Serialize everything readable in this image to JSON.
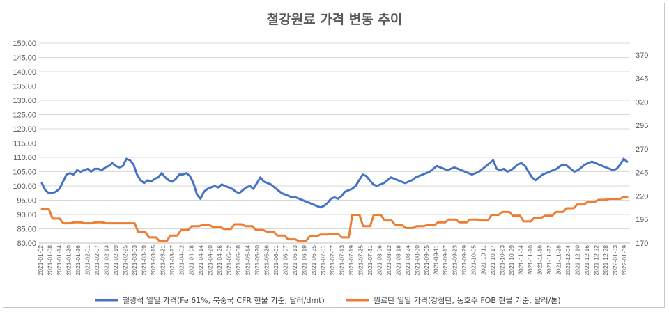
{
  "chart_data": {
    "type": "line",
    "title": "철강원료 가격 변동 추이",
    "y_left": {
      "ticks": [
        "80.00",
        "85.00",
        "90.00",
        "95.00",
        "100.00",
        "105.00",
        "110.00",
        "115.00",
        "120.00",
        "125.00",
        "130.00",
        "135.00",
        "140.00",
        "145.00",
        "150.00"
      ],
      "min": 80,
      "max": 150
    },
    "y_right": {
      "ticks": [
        "170",
        "195",
        "220",
        "245",
        "270",
        "295",
        "320",
        "345",
        "370"
      ],
      "min": 170,
      "max": 382.5
    },
    "x_labels": [
      "2021-01-02",
      "2021-01-08",
      "2021-01-14",
      "2021-01-20",
      "2021-01-26",
      "2021-02-01",
      "2021-02-07",
      "2021-02-13",
      "2021-02-19",
      "2021-02-25",
      "2021-03-03",
      "2021-03-09",
      "2021-03-15",
      "2021-03-21",
      "2021-03-27",
      "2021-04-02",
      "2021-04-08",
      "2021-04-14",
      "2021-04-20",
      "2021-04-26",
      "2021-05-02",
      "2021-05-08",
      "2021-05-14",
      "2021-05-20",
      "2021-05-26",
      "2021-06-01",
      "2021-06-07",
      "2021-06-13",
      "2021-06-19",
      "2021-06-25",
      "2021-07-01",
      "2021-07-07",
      "2021-07-13",
      "2021-07-19",
      "2021-07-25",
      "2021-07-31",
      "2021-08-06",
      "2021-08-12",
      "2021-08-18",
      "2021-08-24",
      "2021-08-30",
      "2021-09-05",
      "2021-09-11",
      "2021-09-17",
      "2021-09-23",
      "2021-09-29",
      "2021-10-05",
      "2021-10-11",
      "2021-10-17",
      "2021-10-23",
      "2021-10-29",
      "2021-11-04",
      "2021-11-10",
      "2021-11-16",
      "2021-11-22",
      "2021-11-28",
      "2021-12-04",
      "2021-12-10",
      "2021-12-16",
      "2021-12-22",
      "2021-12-28",
      "2022-01-03",
      "2022-01-09"
    ],
    "series": [
      {
        "name": "철광석 일일 가격(Fe 61%, 북중국 CFR 현물 기준, 달러/dmt)",
        "axis": "left",
        "color": "#4472c4",
        "values": [
          101.0,
          98.5,
          97.5,
          97.5,
          98.0,
          99.0,
          101.5,
          104.0,
          104.5,
          104.0,
          105.5,
          105.0,
          105.5,
          106.0,
          105.0,
          106.0,
          106.0,
          105.5,
          106.5,
          107.0,
          108.0,
          107.0,
          106.5,
          107.0,
          109.5,
          109.0,
          107.5,
          104.0,
          102.0,
          101.0,
          102.0,
          101.5,
          102.5,
          103.0,
          104.5,
          103.0,
          102.0,
          101.5,
          102.5,
          104.0,
          104.0,
          104.5,
          103.5,
          101.0,
          97.0,
          95.5,
          98.0,
          99.0,
          99.5,
          100.0,
          99.5,
          100.5,
          100.0,
          99.5,
          99.0,
          98.0,
          97.5,
          98.5,
          99.5,
          100.0,
          99.0,
          101.0,
          103.0,
          101.5,
          101.0,
          100.5,
          99.5,
          98.5,
          97.5,
          97.0,
          96.5,
          96.0,
          96.0,
          95.5,
          95.0,
          94.5,
          94.0,
          93.5,
          93.0,
          92.5,
          93.0,
          94.0,
          95.5,
          96.0,
          95.5,
          96.5,
          98.0,
          98.5,
          99.0,
          100.0,
          102.0,
          104.0,
          103.5,
          102.0,
          100.5,
          100.0,
          100.5,
          101.0,
          102.0,
          103.0,
          102.5,
          102.0,
          101.5,
          101.0,
          101.5,
          102.0,
          103.0,
          103.5,
          104.0,
          104.5,
          105.0,
          106.0,
          107.0,
          106.5,
          106.0,
          105.5,
          106.0,
          106.5,
          106.0,
          105.5,
          105.0,
          104.5,
          104.0,
          104.5,
          105.0,
          106.0,
          107.0,
          108.0,
          109.0,
          106.0,
          105.5,
          106.0,
          105.0,
          105.5,
          106.5,
          107.5,
          108.0,
          107.0,
          105.0,
          103.0,
          102.0,
          103.0,
          104.0,
          104.5,
          105.0,
          105.5,
          106.0,
          107.0,
          107.5,
          107.0,
          106.0,
          105.0,
          105.5,
          106.5,
          107.5,
          108.0,
          108.5,
          108.0,
          107.5,
          107.0,
          106.5,
          106.0,
          105.5,
          106.0,
          107.5,
          109.5,
          108.5
        ]
      },
      {
        "name": "원료탄 일일 가격(강점탄, 동호주 FOB 현물 기준, 달러/톤)",
        "axis": "right",
        "color": "#ed7d31",
        "values": [
          206,
          206,
          206,
          196,
          196,
          196,
          191,
          191,
          191,
          192,
          192,
          192,
          191,
          191,
          191,
          192,
          192,
          192,
          191,
          191,
          191,
          191,
          191,
          191,
          191,
          191,
          191,
          182,
          182,
          182,
          176,
          176,
          176,
          172,
          172,
          172,
          178,
          178,
          178,
          184,
          184,
          184,
          188,
          188,
          188,
          189,
          189,
          189,
          187,
          187,
          187,
          185,
          185,
          185,
          190,
          190,
          190,
          188,
          188,
          188,
          184,
          184,
          184,
          182,
          182,
          182,
          178,
          178,
          178,
          174,
          174,
          174,
          172,
          172,
          172,
          177,
          177,
          177,
          179,
          179,
          179,
          180,
          180,
          180,
          176,
          176,
          176,
          200,
          200,
          200,
          188,
          188,
          188,
          200,
          200,
          200,
          194,
          194,
          194,
          189,
          189,
          189,
          186,
          186,
          186,
          188,
          188,
          188,
          189,
          189,
          189,
          192,
          192,
          192,
          195,
          195,
          195,
          192,
          192,
          192,
          195,
          195,
          195,
          194,
          194,
          194,
          200,
          200,
          200,
          203,
          203,
          203,
          199,
          199,
          199,
          193,
          193,
          193,
          197,
          197,
          197,
          199,
          199,
          199,
          203,
          203,
          203,
          207,
          207,
          207,
          211,
          211,
          211,
          214,
          214,
          214,
          216,
          216,
          216,
          217,
          217,
          217,
          217,
          219,
          219
        ]
      }
    ],
    "legend": {
      "position": "bottom"
    },
    "grid": true
  },
  "colors": {
    "iron": "#4472c4",
    "coal": "#ed7d31",
    "grid": "#d9d9d9",
    "text": "#595959"
  }
}
